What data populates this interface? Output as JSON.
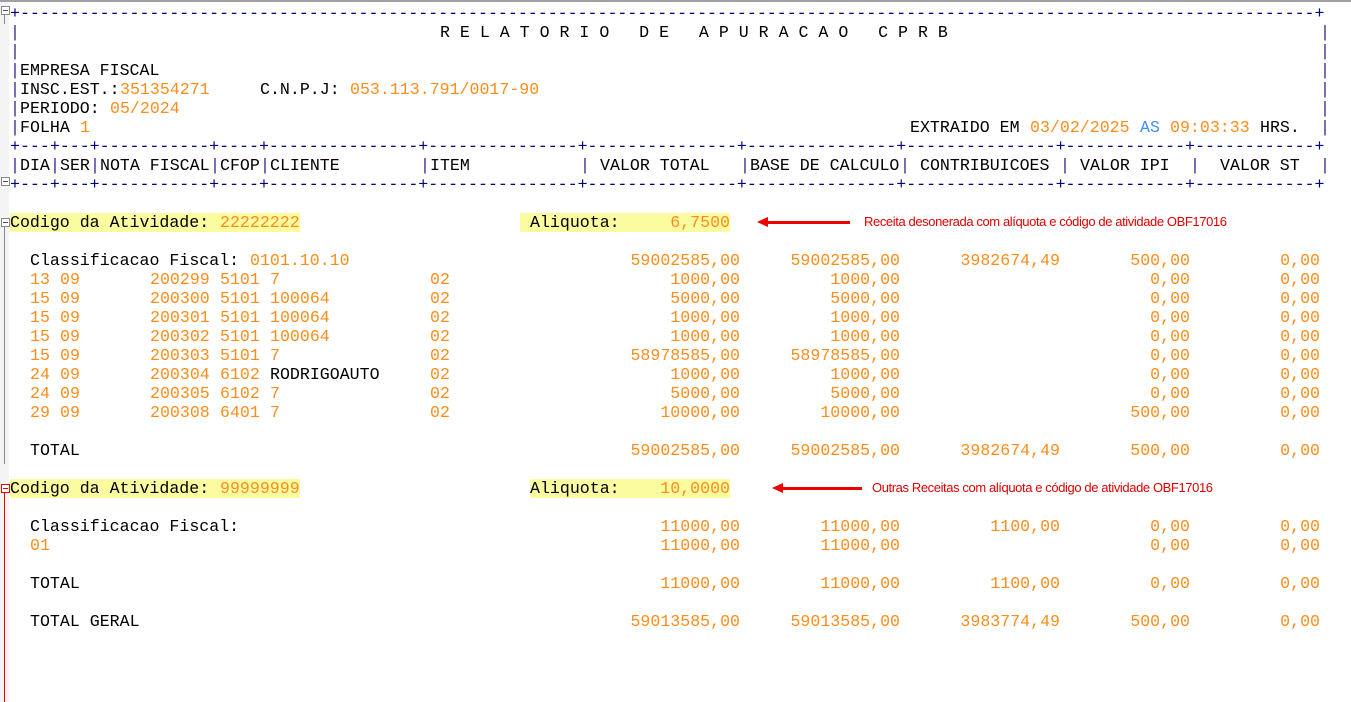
{
  "title": "R E L A T O R I O   D E   A P U R A C A O   C P R B",
  "empresa": "EMPRESA FISCAL",
  "insc_label": "INSC.EST.:",
  "insc_value": "351354271",
  "cnpj_label": "C.N.P.J:",
  "cnpj_value": "053.113.791/0017-90",
  "periodo_label": "PERIODO:",
  "periodo_value": "05/2024",
  "folha_label": "FOLHA",
  "folha_value": "1",
  "extraido_label": "EXTRAIDO EM",
  "extraido_date": "03/02/2025",
  "extraido_as": "AS",
  "extraido_time": "09:03:33",
  "extraido_hrs": "HRS.",
  "columns": [
    "DIA",
    "SER",
    "NOTA FISCAL",
    "CFOP",
    "CLIENTE",
    "ITEM",
    "VALOR TOTAL",
    "BASE DE CALCULO",
    "CONTRIBUICOES",
    "VALOR IPI",
    "VALOR ST"
  ],
  "colors": {
    "number": "#ff8c1a",
    "punctuation": "#000080",
    "keyword": "#3d8fff",
    "highlight": "#fbfba0",
    "annotation": "#e00000"
  },
  "sections": [
    {
      "codigo_label": "Codigo da Atividade:",
      "codigo_value": "22222222",
      "aliquota_label": "Aliquota:",
      "aliquota_value": "6,7500",
      "annotation": "Receita desonerada com alíquota e código de atividade OBF17016",
      "classificacao_label": "Classificacao Fiscal:",
      "classificacao_value": "0101.10.10",
      "classificacao_totals": {
        "valor_total": "59002585,00",
        "base": "59002585,00",
        "contribuicoes": "3982674,49",
        "ipi": "500,00",
        "st": "0,00"
      },
      "rows": [
        {
          "dia": "13",
          "ser": "09",
          "nota": "200299",
          "cfop": "5101",
          "cliente": "7",
          "item": "02",
          "valor_total": "1000,00",
          "base": "1000,00",
          "contribuicoes": "",
          "ipi": "0,00",
          "st": "0,00"
        },
        {
          "dia": "15",
          "ser": "09",
          "nota": "200300",
          "cfop": "5101",
          "cliente": "100064",
          "item": "02",
          "valor_total": "5000,00",
          "base": "5000,00",
          "contribuicoes": "",
          "ipi": "0,00",
          "st": "0,00"
        },
        {
          "dia": "15",
          "ser": "09",
          "nota": "200301",
          "cfop": "5101",
          "cliente": "100064",
          "item": "02",
          "valor_total": "1000,00",
          "base": "1000,00",
          "contribuicoes": "",
          "ipi": "0,00",
          "st": "0,00"
        },
        {
          "dia": "15",
          "ser": "09",
          "nota": "200302",
          "cfop": "5101",
          "cliente": "100064",
          "item": "02",
          "valor_total": "1000,00",
          "base": "1000,00",
          "contribuicoes": "",
          "ipi": "0,00",
          "st": "0,00"
        },
        {
          "dia": "15",
          "ser": "09",
          "nota": "200303",
          "cfop": "5101",
          "cliente": "7",
          "item": "02",
          "valor_total": "58978585,00",
          "base": "58978585,00",
          "contribuicoes": "",
          "ipi": "0,00",
          "st": "0,00"
        },
        {
          "dia": "24",
          "ser": "09",
          "nota": "200304",
          "cfop": "6102",
          "cliente": "RODRIGOAUTO",
          "item": "02",
          "valor_total": "1000,00",
          "base": "1000,00",
          "contribuicoes": "",
          "ipi": "0,00",
          "st": "0,00"
        },
        {
          "dia": "24",
          "ser": "09",
          "nota": "200305",
          "cfop": "6102",
          "cliente": "7",
          "item": "02",
          "valor_total": "5000,00",
          "base": "5000,00",
          "contribuicoes": "",
          "ipi": "0,00",
          "st": "0,00"
        },
        {
          "dia": "29",
          "ser": "09",
          "nota": "200308",
          "cfop": "6401",
          "cliente": "7",
          "item": "02",
          "valor_total": "10000,00",
          "base": "10000,00",
          "contribuicoes": "",
          "ipi": "500,00",
          "st": "0,00"
        }
      ],
      "total_label": "TOTAL",
      "totals": {
        "valor_total": "59002585,00",
        "base": "59002585,00",
        "contribuicoes": "3982674,49",
        "ipi": "500,00",
        "st": "0,00"
      }
    },
    {
      "codigo_label": "Codigo da Atividade:",
      "codigo_value": "99999999",
      "aliquota_label": "Aliquota:",
      "aliquota_value": "10,0000",
      "annotation": "Outras Receitas com alíquota e código de atividade OBF17016",
      "classificacao_label": "Classificacao Fiscal:",
      "classificacao_value": "",
      "classificacao_totals": {
        "valor_total": "11000,00",
        "base": "11000,00",
        "contribuicoes": "1100,00",
        "ipi": "0,00",
        "st": "0,00"
      },
      "sub_rows": [
        {
          "code": "01",
          "valor_total": "11000,00",
          "base": "11000,00",
          "contribuicoes": "",
          "ipi": "0,00",
          "st": "0,00"
        }
      ],
      "total_label": "TOTAL",
      "totals": {
        "valor_total": "11000,00",
        "base": "11000,00",
        "contribuicoes": "1100,00",
        "ipi": "0,00",
        "st": "0,00"
      }
    }
  ],
  "total_geral_label": "TOTAL GERAL",
  "total_geral": {
    "valor_total": "59013585,00",
    "base": "59013585,00",
    "contribuicoes": "3983774,49",
    "ipi": "500,00",
    "st": "0,00"
  }
}
